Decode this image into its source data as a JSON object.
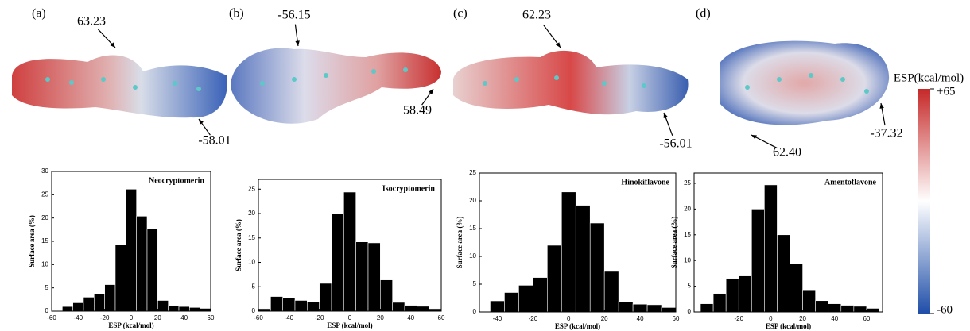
{
  "panels": [
    {
      "label": "(a)",
      "annotations": [
        "63.23",
        "-58.01"
      ]
    },
    {
      "label": "(b)",
      "annotations": [
        "-56.15",
        "58.49"
      ]
    },
    {
      "label": "(c)",
      "annotations": [
        "62.23",
        "-56.01"
      ]
    },
    {
      "label": "(d)",
      "annotations": [
        "62.40",
        "-37.32"
      ]
    }
  ],
  "colorbar": {
    "title": "ESP(kcal/mol)",
    "ticks": [
      {
        "value": 65,
        "label": "+65"
      },
      -60
    ]
  },
  "chart_data": [
    {
      "type": "histogram",
      "title": "Neocryptomerin",
      "xlabel": "ESP (kcal/mol)",
      "ylabel": "Surface area (%)",
      "color": "#000000",
      "bins": [
        -52,
        -44,
        -36,
        -28,
        -20,
        -12,
        -4,
        4,
        12,
        20,
        28,
        36,
        44,
        52,
        60
      ],
      "values": [
        1.0,
        1.8,
        3.0,
        3.8,
        5.7,
        14.2,
        26.2,
        20.4,
        17.7,
        2.3,
        1.2,
        1.0,
        0.8,
        0.6
      ],
      "xlim": [
        -60,
        60
      ],
      "xticks": [
        -60,
        -40,
        -20,
        0,
        20,
        40,
        60
      ],
      "ylim": [
        0,
        30
      ],
      "yticks": [
        0,
        5,
        10,
        15,
        20,
        25,
        30
      ]
    },
    {
      "type": "histogram",
      "title": "Isocryptomerin",
      "xlabel": "ESP (kcal/mol)",
      "ylabel": "Surface area (%)",
      "color": "#000000",
      "bins": [
        -60,
        -52,
        -44,
        -36,
        -28,
        -20,
        -12,
        -4,
        4,
        12,
        20,
        28,
        36,
        44,
        52,
        60
      ],
      "values": [
        0.5,
        3.0,
        2.7,
        2.2,
        2.0,
        5.7,
        20.0,
        24.4,
        14.2,
        14.0,
        6.4,
        1.8,
        1.2,
        1.0,
        0.5
      ],
      "xlim": [
        -60,
        60
      ],
      "xticks": [
        -60,
        -40,
        -20,
        0,
        20,
        40,
        60
      ],
      "ylim": [
        0,
        27
      ],
      "yticks": [
        0,
        5,
        10,
        15,
        20,
        25
      ]
    },
    {
      "type": "histogram",
      "title": "Hinokiflavone",
      "xlabel": "ESP (kcal/mol)",
      "ylabel": "Surface area (%)",
      "color": "#000000",
      "bins": [
        -44,
        -36,
        -28,
        -20,
        -12,
        -4,
        4,
        12,
        20,
        28,
        36,
        44,
        52,
        60
      ],
      "values": [
        2.0,
        3.5,
        4.8,
        6.2,
        12.0,
        21.6,
        19.2,
        16.0,
        7.3,
        1.9,
        1.4,
        1.3,
        0.8
      ],
      "xlim": [
        -50,
        60
      ],
      "xticks": [
        -40,
        -20,
        0,
        20,
        40,
        60
      ],
      "ylim": [
        0,
        25
      ],
      "yticks": [
        0,
        5,
        10,
        15,
        20,
        25
      ]
    },
    {
      "type": "histogram",
      "title": "Amentoflavone",
      "xlabel": "ESP (kcal/mol)",
      "ylabel": "Surface area (%)",
      "color": "#000000",
      "bins": [
        -44,
        -36,
        -28,
        -20,
        -12,
        -4,
        4,
        12,
        20,
        28,
        36,
        44,
        52,
        60,
        68
      ],
      "values": [
        1.6,
        3.6,
        6.5,
        7.0,
        20.0,
        24.7,
        15.0,
        9.4,
        4.3,
        2.2,
        1.6,
        1.3,
        1.1,
        0.7
      ],
      "xlim": [
        -48,
        70
      ],
      "xticks": [
        -20,
        0,
        20,
        40,
        60
      ],
      "ylim": [
        0,
        27
      ],
      "yticks": [
        0,
        5,
        10,
        15,
        20,
        25
      ]
    }
  ]
}
